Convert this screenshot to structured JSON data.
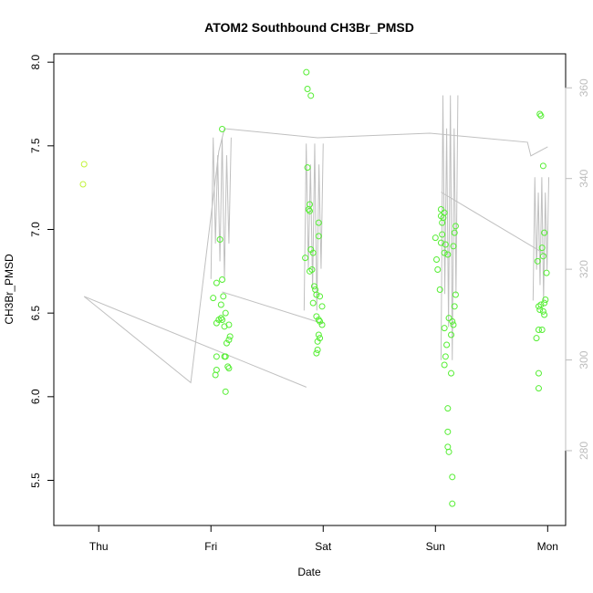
{
  "chart_data": {
    "type": "scatter",
    "title": "ATOM2 Southbound CH3Br_PMSD",
    "xlabel": "Date",
    "ylabel": "CH3Br_PMSD",
    "x_ticks": [
      "Thu",
      "Fri",
      "Sat",
      "Sun",
      "Mon"
    ],
    "x_range_days": [
      -0.4,
      4.16
    ],
    "ylim": [
      5.23,
      8.05
    ],
    "y_ticks": [
      5.5,
      6.0,
      6.5,
      7.0,
      7.5,
      8.0
    ],
    "y2lim": [
      263.5,
      367.5
    ],
    "y2_ticks": [
      280,
      300,
      320,
      340,
      360
    ],
    "grid": false,
    "point_colors": {
      "yellowgreen": "#c2f23a",
      "green": "#55ee33"
    },
    "line_color": "#c0c0c0",
    "right_axis_color": "#bdbdbd",
    "series": [
      {
        "points": [
          [
            -0.13,
            7.39,
            "yellowgreen"
          ],
          [
            -0.14,
            7.27,
            "yellowgreen"
          ],
          [
            1.1,
            7.6,
            "green"
          ],
          [
            1.08,
            6.94,
            "green"
          ],
          [
            1.1,
            6.7,
            "green"
          ],
          [
            1.05,
            6.68,
            "green"
          ],
          [
            1.11,
            6.6,
            "green"
          ],
          [
            1.02,
            6.59,
            "green"
          ],
          [
            1.09,
            6.55,
            "green"
          ],
          [
            1.13,
            6.5,
            "green"
          ],
          [
            1.09,
            6.47,
            "green"
          ],
          [
            1.07,
            6.46,
            "green"
          ],
          [
            1.1,
            6.46,
            "green"
          ],
          [
            1.05,
            6.44,
            "green"
          ],
          [
            1.16,
            6.43,
            "green"
          ],
          [
            1.12,
            6.42,
            "green"
          ],
          [
            1.17,
            6.36,
            "green"
          ],
          [
            1.16,
            6.34,
            "green"
          ],
          [
            1.14,
            6.32,
            "green"
          ],
          [
            1.12,
            6.24,
            "green"
          ],
          [
            1.05,
            6.24,
            "green"
          ],
          [
            1.13,
            6.24,
            "green"
          ],
          [
            1.15,
            6.18,
            "green"
          ],
          [
            1.16,
            6.17,
            "green"
          ],
          [
            1.05,
            6.16,
            "green"
          ],
          [
            1.04,
            6.13,
            "green"
          ],
          [
            1.13,
            6.03,
            "green"
          ],
          [
            1.85,
            7.94,
            "green"
          ],
          [
            1.86,
            7.84,
            "green"
          ],
          [
            1.89,
            7.8,
            "green"
          ],
          [
            1.86,
            7.37,
            "green"
          ],
          [
            1.88,
            7.15,
            "green"
          ],
          [
            1.87,
            7.12,
            "green"
          ],
          [
            1.88,
            7.11,
            "green"
          ],
          [
            1.96,
            7.04,
            "green"
          ],
          [
            1.96,
            6.96,
            "green"
          ],
          [
            1.89,
            6.88,
            "green"
          ],
          [
            1.91,
            6.86,
            "green"
          ],
          [
            1.84,
            6.83,
            "green"
          ],
          [
            1.88,
            6.75,
            "green"
          ],
          [
            1.9,
            6.76,
            "green"
          ],
          [
            1.92,
            6.66,
            "green"
          ],
          [
            1.93,
            6.64,
            "green"
          ],
          [
            1.94,
            6.61,
            "green"
          ],
          [
            1.97,
            6.6,
            "green"
          ],
          [
            1.91,
            6.56,
            "green"
          ],
          [
            1.99,
            6.54,
            "green"
          ],
          [
            1.94,
            6.48,
            "green"
          ],
          [
            1.96,
            6.46,
            "green"
          ],
          [
            1.97,
            6.45,
            "green"
          ],
          [
            1.99,
            6.43,
            "green"
          ],
          [
            1.96,
            6.37,
            "green"
          ],
          [
            1.97,
            6.35,
            "green"
          ],
          [
            1.95,
            6.33,
            "green"
          ],
          [
            1.95,
            6.28,
            "green"
          ],
          [
            1.94,
            6.26,
            "green"
          ],
          [
            3.05,
            7.12,
            "green"
          ],
          [
            3.08,
            7.1,
            "green"
          ],
          [
            3.05,
            7.08,
            "green"
          ],
          [
            3.07,
            7.07,
            "green"
          ],
          [
            3.06,
            7.04,
            "green"
          ],
          [
            3.18,
            7.02,
            "green"
          ],
          [
            3.17,
            6.98,
            "green"
          ],
          [
            3.06,
            6.97,
            "green"
          ],
          [
            3.0,
            6.95,
            "green"
          ],
          [
            3.05,
            6.92,
            "green"
          ],
          [
            3.09,
            6.91,
            "green"
          ],
          [
            3.16,
            6.9,
            "green"
          ],
          [
            3.08,
            6.86,
            "green"
          ],
          [
            3.11,
            6.85,
            "green"
          ],
          [
            3.01,
            6.82,
            "green"
          ],
          [
            3.02,
            6.76,
            "green"
          ],
          [
            3.04,
            6.64,
            "green"
          ],
          [
            3.18,
            6.61,
            "green"
          ],
          [
            3.17,
            6.54,
            "green"
          ],
          [
            3.12,
            6.47,
            "green"
          ],
          [
            3.15,
            6.45,
            "green"
          ],
          [
            3.16,
            6.43,
            "green"
          ],
          [
            3.08,
            6.41,
            "green"
          ],
          [
            3.14,
            6.37,
            "green"
          ],
          [
            3.1,
            6.31,
            "green"
          ],
          [
            3.09,
            6.24,
            "green"
          ],
          [
            3.08,
            6.19,
            "green"
          ],
          [
            3.14,
            6.14,
            "green"
          ],
          [
            3.11,
            5.93,
            "green"
          ],
          [
            3.11,
            5.79,
            "green"
          ],
          [
            3.11,
            5.7,
            "green"
          ],
          [
            3.12,
            5.67,
            "green"
          ],
          [
            3.15,
            5.52,
            "green"
          ],
          [
            3.15,
            5.36,
            "green"
          ],
          [
            3.93,
            7.69,
            "green"
          ],
          [
            3.94,
            7.68,
            "green"
          ],
          [
            3.96,
            7.38,
            "green"
          ],
          [
            3.97,
            6.98,
            "green"
          ],
          [
            3.95,
            6.89,
            "green"
          ],
          [
            3.96,
            6.84,
            "green"
          ],
          [
            3.91,
            6.81,
            "green"
          ],
          [
            3.99,
            6.74,
            "green"
          ],
          [
            3.98,
            6.58,
            "green"
          ],
          [
            3.97,
            6.56,
            "green"
          ],
          [
            3.94,
            6.55,
            "green"
          ],
          [
            3.92,
            6.54,
            "green"
          ],
          [
            3.93,
            6.52,
            "green"
          ],
          [
            3.96,
            6.51,
            "green"
          ],
          [
            3.97,
            6.49,
            "green"
          ],
          [
            3.92,
            6.4,
            "green"
          ],
          [
            3.95,
            6.4,
            "green"
          ],
          [
            3.9,
            6.35,
            "green"
          ],
          [
            3.92,
            6.14,
            "green"
          ],
          [
            3.92,
            6.05,
            "green"
          ]
        ]
      },
      {
        "axis": "right",
        "points": [
          [
            -0.13,
            314
          ],
          [
            0.82,
            295
          ],
          [
            1.07,
            346
          ],
          [
            1.1,
            349
          ],
          [
            1.12,
            351
          ],
          [
            1.95,
            349
          ],
          [
            2.95,
            350
          ],
          [
            3.82,
            348
          ],
          [
            3.85,
            345
          ],
          [
            4.0,
            347
          ]
        ],
        "bursts": [
          {
            "x0": 1.0,
            "x1": 1.18,
            "ymin": 312,
            "ymax": 351
          },
          {
            "x0": 1.83,
            "x1": 2.0,
            "ymin": 304,
            "ymax": 350
          },
          {
            "x0": 3.05,
            "x1": 3.2,
            "ymin": 289,
            "ymax": 362
          },
          {
            "x0": 3.87,
            "x1": 4.01,
            "ymin": 308,
            "ymax": 342
          }
        ],
        "segments": [
          [
            [
              -0.13,
              314
            ],
            [
              1.85,
              294
            ]
          ],
          [
            [
              1.1,
              315
            ],
            [
              2.0,
              308
            ]
          ],
          [
            [
              3.05,
              337
            ],
            [
              4.0,
              323
            ]
          ]
        ]
      }
    ]
  }
}
